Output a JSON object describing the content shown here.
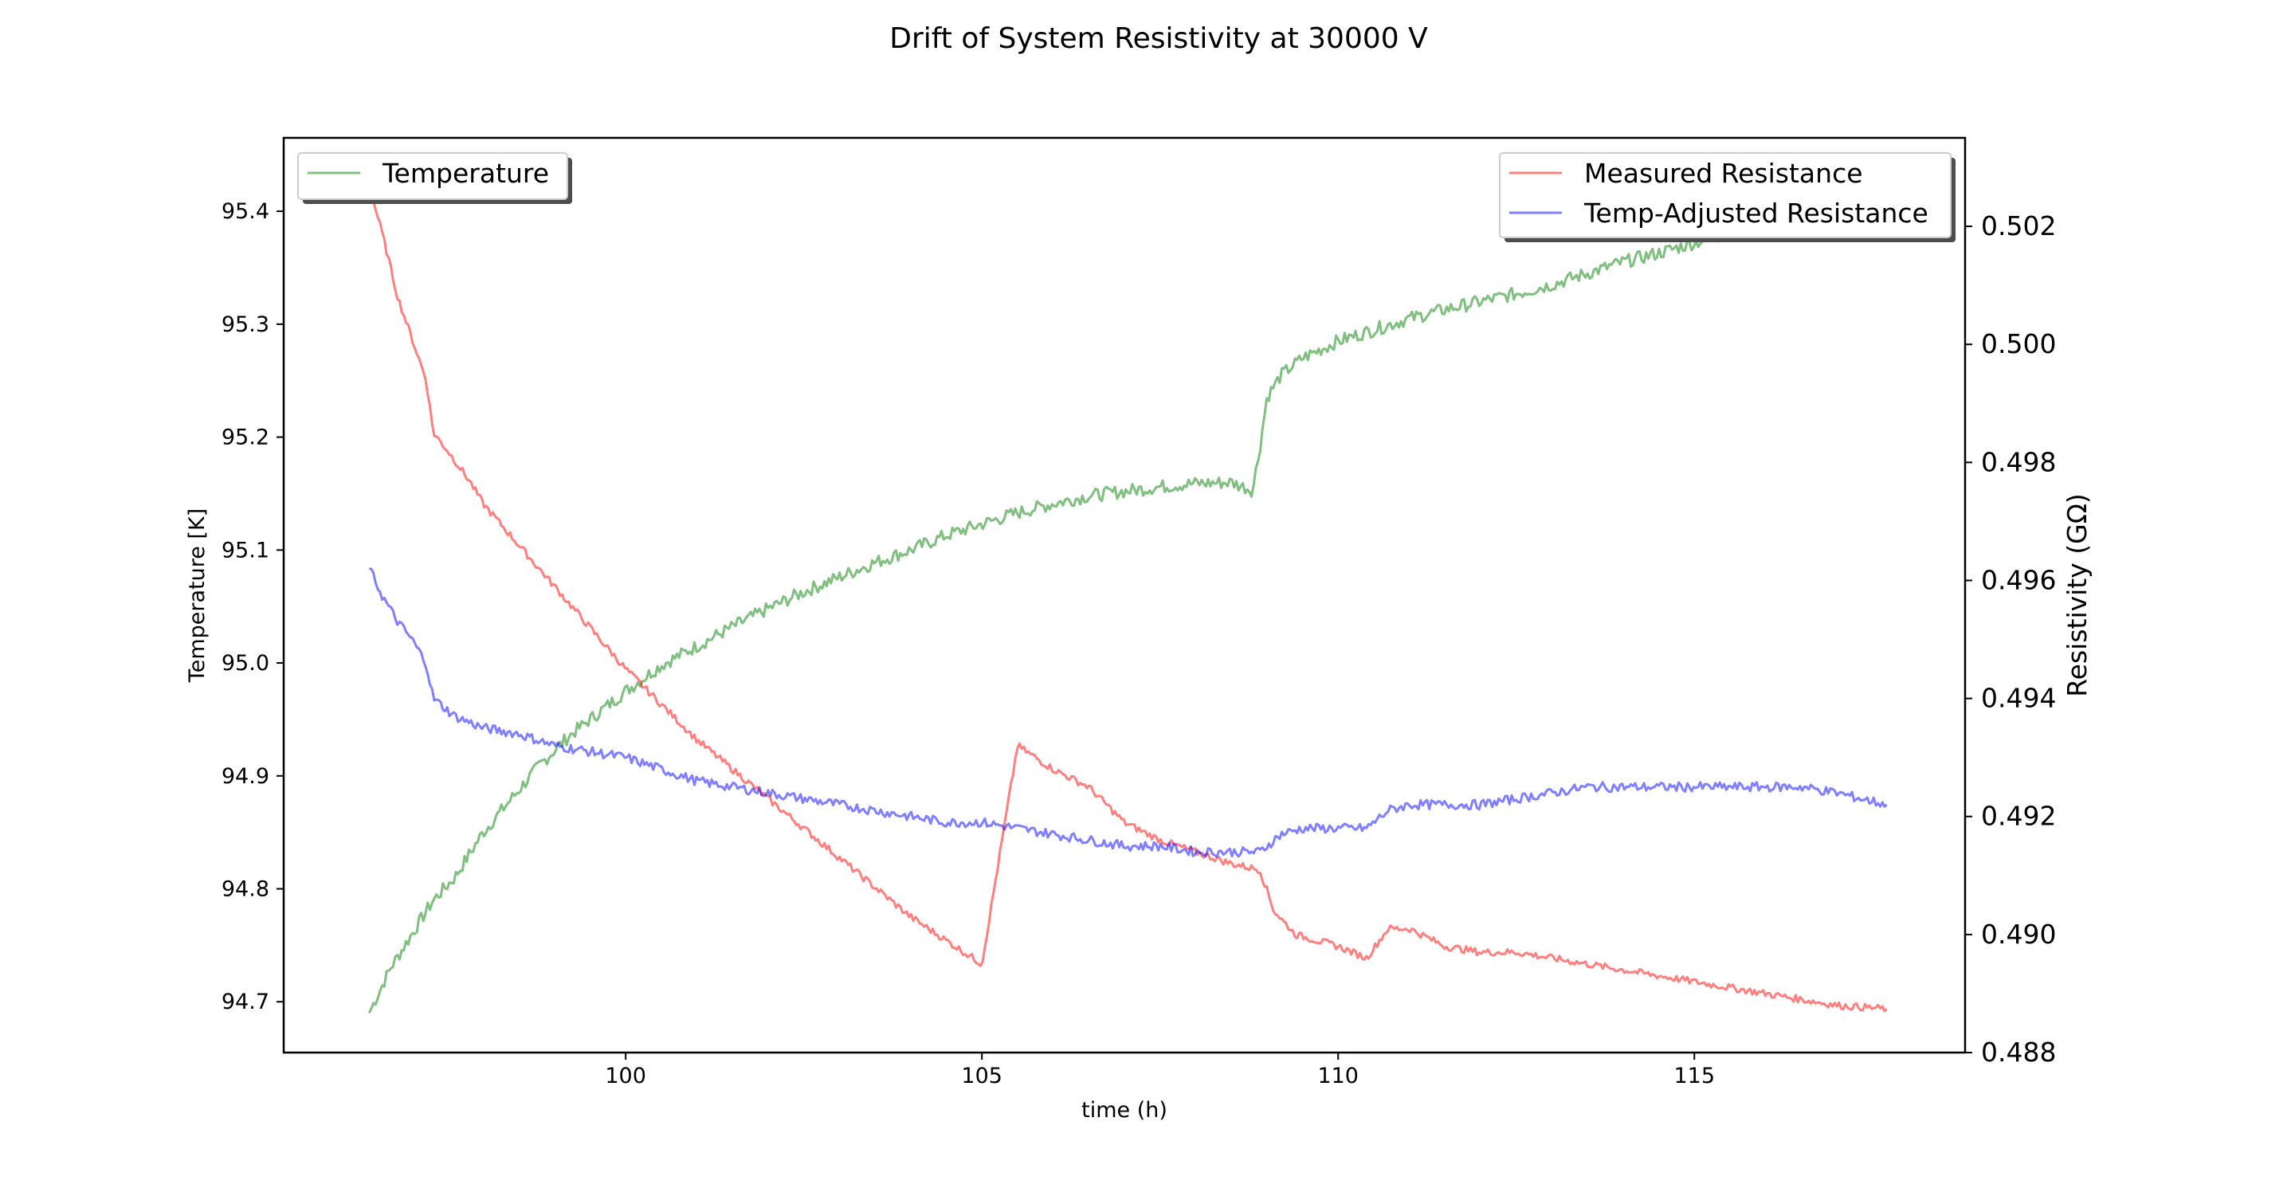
{
  "chart_data": {
    "type": "line",
    "title": "Drift of System Resistivity at 30000 V",
    "xlabel": "time (h)",
    "xlim": [
      95.2,
      118.8
    ],
    "xticks": [
      100,
      105,
      110,
      115
    ],
    "xtick_labels": [
      "100",
      "105",
      "110",
      "115"
    ],
    "left_axis": {
      "label": "Temperature [K]",
      "label_color": "#008000",
      "ylim": [
        94.655,
        95.465
      ],
      "ticks": [
        94.7,
        94.8,
        94.9,
        95.0,
        95.1,
        95.2,
        95.3,
        95.4
      ],
      "tick_labels": [
        "94.7",
        "94.8",
        "94.9",
        "95.0",
        "95.1",
        "95.2",
        "95.3",
        "95.4"
      ]
    },
    "right_axis": {
      "label": "Resistivity (GΩ)",
      "label_color": "#ff0000",
      "ylim": [
        0.488,
        0.5035
      ],
      "ticks": [
        0.488,
        0.49,
        0.492,
        0.494,
        0.496,
        0.498,
        0.5,
        0.502
      ],
      "tick_labels": [
        "0.488",
        "0.490",
        "0.492",
        "0.494",
        "0.496",
        "0.498",
        "0.500",
        "0.502"
      ]
    },
    "legend_left": {
      "placement": "upper-left",
      "entries": [
        "Temperature"
      ]
    },
    "legend_right": {
      "placement": "upper-right",
      "entries": [
        "Measured Resistance",
        "Temp-Adjusted Resistance"
      ]
    },
    "grid": false,
    "series": [
      {
        "name": "Temperature",
        "axis": "left",
        "color": "#008000",
        "opacity": 0.5,
        "x": [
          96.4,
          96.7,
          97.0,
          97.3,
          97.6,
          98.0,
          98.4,
          98.8,
          99.2,
          99.6,
          100.0,
          100.5,
          101.0,
          101.5,
          102.0,
          102.5,
          103.0,
          103.5,
          104.0,
          104.5,
          105.0,
          105.5,
          106.0,
          106.5,
          107.0,
          107.5,
          108.0,
          108.5,
          108.8,
          108.9,
          109.0,
          109.2,
          109.5,
          110.0,
          110.5,
          111.0,
          111.5,
          112.0,
          112.5,
          113.0,
          113.5,
          114.0,
          114.5,
          115.0,
          115.5,
          116.0,
          116.5,
          117.0,
          117.7
        ],
        "y": [
          94.69,
          94.73,
          94.76,
          94.79,
          94.81,
          94.85,
          94.88,
          94.91,
          94.935,
          94.955,
          94.975,
          94.998,
          95.015,
          95.032,
          95.048,
          95.063,
          95.076,
          95.089,
          95.1,
          95.113,
          95.123,
          95.133,
          95.141,
          95.148,
          95.152,
          95.156,
          95.159,
          95.16,
          95.153,
          95.19,
          95.235,
          95.255,
          95.27,
          95.285,
          95.295,
          95.305,
          95.313,
          95.32,
          95.327,
          95.335,
          95.345,
          95.355,
          95.363,
          95.372,
          95.381,
          95.389,
          95.397,
          95.405,
          95.415
        ]
      },
      {
        "name": "Measured Resistance",
        "axis": "right",
        "color": "#ff0000",
        "opacity": 0.5,
        "x": [
          96.4,
          96.6,
          96.8,
          97.0,
          97.2,
          97.3,
          97.5,
          97.8,
          98.0,
          98.5,
          99.0,
          99.5,
          100.0,
          100.5,
          101.0,
          101.5,
          102.0,
          102.5,
          103.0,
          103.5,
          104.0,
          104.5,
          105.0,
          105.5,
          106.0,
          106.5,
          107.0,
          107.5,
          108.0,
          108.5,
          108.9,
          109.1,
          109.4,
          110.0,
          110.4,
          110.7,
          111.0,
          111.5,
          112.0,
          112.5,
          113.0,
          113.5,
          114.0,
          114.5,
          115.0,
          115.5,
          116.0,
          116.5,
          117.0,
          117.7
        ],
        "y": [
          0.5027,
          0.5018,
          0.5008,
          0.5001,
          0.4994,
          0.4985,
          0.4982,
          0.4977,
          0.4973,
          0.4966,
          0.4959,
          0.4952,
          0.4945,
          0.4939,
          0.4933,
          0.4928,
          0.4923,
          0.4918,
          0.4913,
          0.4908,
          0.4903,
          0.4899,
          0.4895,
          0.4932,
          0.4928,
          0.4925,
          0.4919,
          0.4916,
          0.4914,
          0.4912,
          0.4911,
          0.4904,
          0.49,
          0.4898,
          0.4896,
          0.4901,
          0.4901,
          0.4898,
          0.4897,
          0.4897,
          0.4896,
          0.4895,
          0.4894,
          0.4893,
          0.4892,
          0.4891,
          0.489,
          0.4889,
          0.4888,
          0.48874
        ]
      },
      {
        "name": "Temp-Adjusted Resistance",
        "axis": "right",
        "color": "#0000ff",
        "opacity": 0.5,
        "x": [
          96.4,
          96.6,
          96.8,
          97.0,
          97.2,
          97.3,
          97.6,
          98.0,
          98.5,
          99.0,
          99.5,
          100.0,
          100.5,
          101.0,
          101.5,
          102.0,
          102.5,
          103.0,
          103.5,
          104.0,
          104.5,
          105.0,
          105.5,
          106.0,
          106.5,
          107.0,
          107.5,
          108.0,
          108.5,
          108.9,
          109.2,
          109.5,
          110.0,
          110.4,
          110.7,
          111.0,
          111.5,
          112.0,
          112.5,
          113.0,
          113.5,
          114.0,
          114.5,
          115.0,
          115.5,
          116.0,
          116.5,
          117.0,
          117.7
        ],
        "y": [
          0.4962,
          0.4957,
          0.4953,
          0.495,
          0.4946,
          0.494,
          0.4937,
          0.4935,
          0.4934,
          0.4932,
          0.4931,
          0.493,
          0.4928,
          0.4926,
          0.4925,
          0.4924,
          0.4923,
          0.4922,
          0.4921,
          0.492,
          0.4919,
          0.4919,
          0.4918,
          0.4917,
          0.4916,
          0.4915,
          0.4915,
          0.4914,
          0.4914,
          0.4914,
          0.4917,
          0.4918,
          0.4918,
          0.4918,
          0.4921,
          0.4922,
          0.4922,
          0.4922,
          0.4923,
          0.4924,
          0.4925,
          0.4925,
          0.4925,
          0.4925,
          0.4925,
          0.4925,
          0.4925,
          0.4924,
          0.4922
        ]
      }
    ]
  }
}
